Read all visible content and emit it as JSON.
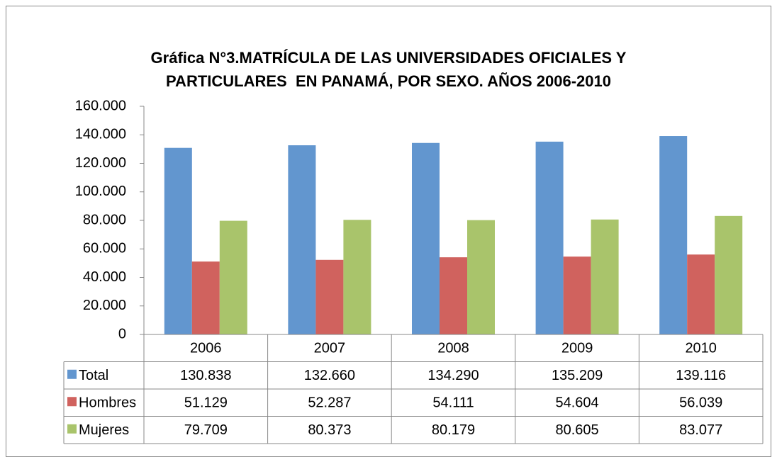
{
  "chart_data": {
    "type": "bar",
    "title": [
      "Gráfica N°3.MATRÍCULA DE LAS UNIVERSIDADES OFICIALES Y",
      "PARTICULARES  EN PANAMÁ, POR SEXO. AÑOS 2006-2010"
    ],
    "categories": [
      "2006",
      "2007",
      "2008",
      "2009",
      "2010"
    ],
    "series": [
      {
        "name": "Total",
        "color": "#6296cf",
        "values": [
          130838,
          132660,
          134290,
          135209,
          139116
        ],
        "value_labels": [
          "130.838",
          "132.660",
          "134.290",
          "135.209",
          "139.116"
        ]
      },
      {
        "name": "Hombres",
        "color": "#d0625e",
        "values": [
          51129,
          52287,
          54111,
          54604,
          56039
        ],
        "value_labels": [
          "51.129",
          "52.287",
          "54.111",
          "54.604",
          "56.039"
        ]
      },
      {
        "name": "Mujeres",
        "color": "#a9c46b",
        "values": [
          79709,
          80373,
          80179,
          80605,
          83077
        ],
        "value_labels": [
          "79.709",
          "80.373",
          "80.179",
          "80.605",
          "83.077"
        ]
      }
    ],
    "ylim": [
      0,
      160000
    ],
    "yticks": [
      0,
      {
        "value": 20000,
        "label": "20.000"
      },
      {
        "value": 40000,
        "label": "40.000"
      },
      {
        "value": 60000,
        "label": "60.000"
      },
      {
        "value": 80000,
        "label": "80.000"
      },
      {
        "value": 100000,
        "label": "100.000"
      },
      {
        "value": 120000,
        "label": "120.000"
      },
      {
        "value": 140000,
        "label": "140.000"
      },
      {
        "value": 160000,
        "label": "160.000"
      }
    ],
    "grid": false
  }
}
